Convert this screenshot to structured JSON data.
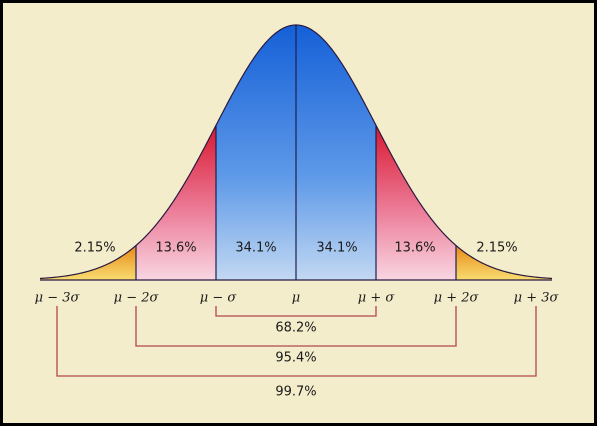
{
  "regions": [
    {
      "label": "2.15%"
    },
    {
      "label": "13.6%"
    },
    {
      "label": "34.1%"
    },
    {
      "label": "34.1%"
    },
    {
      "label": "13.6%"
    },
    {
      "label": "2.15%"
    }
  ],
  "axis_labels": [
    "μ − 3σ",
    "μ − 2σ",
    "μ − σ",
    "μ",
    "μ + σ",
    "μ + 2σ",
    "μ + 3σ"
  ],
  "ranges": [
    {
      "label": "68.2%"
    },
    {
      "label": "95.4%"
    },
    {
      "label": "99.7%"
    }
  ]
}
